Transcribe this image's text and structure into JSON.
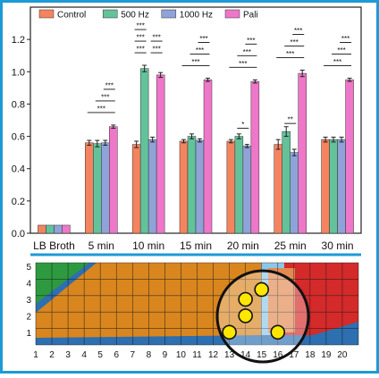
{
  "colors": {
    "frame": "#1e9ad6",
    "Control": "#f4845f",
    "500 Hz": "#63c29a",
    "1000 Hz": "#8fa3d8",
    "Pali": "#ee77c9",
    "axis": "#222222"
  },
  "chart_data": {
    "type": "bar",
    "categories": [
      "LB Broth",
      "5 min",
      "10 min",
      "15 min",
      "20 min",
      "25 min",
      "30 min"
    ],
    "series": [
      {
        "name": "Control",
        "values": [
          0.05,
          0.56,
          0.55,
          0.57,
          0.57,
          0.55,
          0.58
        ],
        "errors": [
          0,
          0.015,
          0.02,
          0.01,
          0.01,
          0.03,
          0.015
        ]
      },
      {
        "name": "500 Hz",
        "values": [
          0.05,
          0.555,
          1.02,
          0.6,
          0.6,
          0.63,
          0.58
        ],
        "errors": [
          0,
          0.02,
          0.02,
          0.015,
          0.015,
          0.03,
          0.015
        ]
      },
      {
        "name": "1000 Hz",
        "values": [
          0.05,
          0.56,
          0.58,
          0.575,
          0.54,
          0.5,
          0.58
        ],
        "errors": [
          0,
          0.015,
          0.015,
          0.01,
          0.01,
          0.02,
          0.015
        ]
      },
      {
        "name": "Pali",
        "values": [
          0.05,
          0.66,
          0.98,
          0.95,
          0.94,
          0.99,
          0.95
        ],
        "errors": [
          0,
          0.01,
          0.015,
          0.01,
          0.01,
          0.02,
          0.01
        ]
      }
    ],
    "ylim": [
      0,
      1.4
    ],
    "yticks": [
      "0.0",
      "0.2",
      "0.4",
      "0.6",
      "0.8",
      "1.0",
      "1.2"
    ],
    "legend": "top-left",
    "significance": [
      {
        "group": 1,
        "from": 0,
        "to": 3,
        "level": 0,
        "label": "***"
      },
      {
        "group": 1,
        "from": 1,
        "to": 3,
        "level": 1,
        "label": "***"
      },
      {
        "group": 1,
        "from": 2,
        "to": 3,
        "level": 2,
        "label": "***"
      },
      {
        "group": 2,
        "from": 0,
        "to": 1,
        "level": 0,
        "label": "***"
      },
      {
        "group": 2,
        "from": 0,
        "to": 1,
        "level": 1,
        "label": "***"
      },
      {
        "group": 2,
        "from": 0,
        "to": 1,
        "level": 2,
        "label": "***"
      },
      {
        "group": 2,
        "from": 2,
        "to": 3,
        "level": 0,
        "label": "***"
      },
      {
        "group": 2,
        "from": 2,
        "to": 3,
        "level": 1,
        "label": "***"
      },
      {
        "group": 3,
        "from": 0,
        "to": 3,
        "level": 0,
        "label": "***"
      },
      {
        "group": 3,
        "from": 1,
        "to": 3,
        "level": 1,
        "label": "***"
      },
      {
        "group": 3,
        "from": 2,
        "to": 3,
        "level": 2,
        "label": "***"
      },
      {
        "group": 4,
        "from": 1,
        "to": 2,
        "level": -1,
        "label": "*"
      },
      {
        "group": 4,
        "from": 0,
        "to": 3,
        "level": 0,
        "label": "***"
      },
      {
        "group": 4,
        "from": 1,
        "to": 3,
        "level": 1,
        "label": "***"
      },
      {
        "group": 4,
        "from": 2,
        "to": 3,
        "level": 2,
        "label": "***"
      },
      {
        "group": 5,
        "from": 1,
        "to": 2,
        "level": -1,
        "label": "**"
      },
      {
        "group": 5,
        "from": 0,
        "to": 3,
        "level": 0,
        "label": "***"
      },
      {
        "group": 5,
        "from": 1,
        "to": 3,
        "level": 1,
        "label": "***"
      },
      {
        "group": 5,
        "from": 2,
        "to": 3,
        "level": 2,
        "label": "***"
      },
      {
        "group": 6,
        "from": 0,
        "to": 3,
        "level": 0,
        "label": "***"
      },
      {
        "group": 6,
        "from": 1,
        "to": 3,
        "level": 1,
        "label": "***"
      },
      {
        "group": 6,
        "from": 2,
        "to": 3,
        "level": 2,
        "label": "***"
      }
    ]
  },
  "grid_map": {
    "x_labels": [
      "1",
      "2",
      "3",
      "4",
      "5",
      "6",
      "7",
      "8",
      "9",
      "10",
      "11",
      "12",
      "13",
      "14",
      "15",
      "16",
      "17",
      "18",
      "19",
      "20"
    ],
    "y_labels": [
      "1",
      "2",
      "3",
      "4",
      "5"
    ],
    "points": [
      [
        14,
        3
      ],
      [
        14,
        2
      ],
      [
        15,
        3.6
      ],
      [
        13,
        1
      ],
      [
        16,
        1
      ]
    ]
  }
}
